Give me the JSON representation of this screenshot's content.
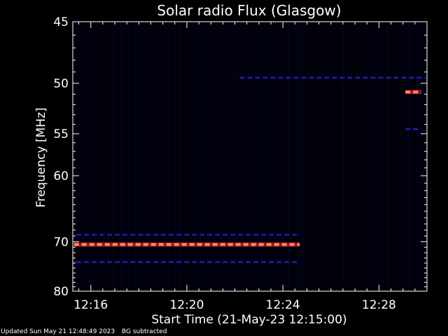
{
  "chart_data": {
    "type": "heatmap",
    "title": "Solar radio Flux (Glasgow)",
    "xlabel": "Start Time (21-May-23 12:15:00)",
    "ylabel": "Frequency [MHz]",
    "x_range_minutes": [
      12.25,
      12.512
    ],
    "x_ticks": [
      "12:16",
      "12:20",
      "12:24",
      "12:28"
    ],
    "x_tick_minutes": [
      16,
      20,
      24,
      28
    ],
    "x_min_minutes": 15.25,
    "x_max_minutes": 30.0,
    "ylim": [
      80,
      45
    ],
    "y_ticks": [
      45,
      50,
      55,
      60,
      70,
      80
    ],
    "y_scale": "reciprocal",
    "colors": {
      "background": "#000008",
      "low": "#1a1aa0",
      "mid": "#c02040",
      "high": "#ff9040",
      "axes": "#ffffff"
    },
    "emission_bands": [
      {
        "freq": 70.5,
        "start_min": 15.3,
        "end_min": 24.7,
        "intensity": "high"
      },
      {
        "freq": 68.8,
        "start_min": 15.4,
        "end_min": 24.7,
        "intensity": "low"
      },
      {
        "freq": 73.8,
        "start_min": 15.4,
        "end_min": 24.7,
        "intensity": "low"
      },
      {
        "freq": 49.5,
        "start_min": 22.2,
        "end_min": 29.95,
        "intensity": "low"
      },
      {
        "freq": 50.8,
        "start_min": 29.1,
        "end_min": 29.75,
        "intensity": "high"
      },
      {
        "freq": 54.5,
        "start_min": 29.1,
        "end_min": 29.75,
        "intensity": "low"
      }
    ],
    "footer": {
      "updated": "Updated Sun May 21 12:48:49 2023",
      "note": "BG subtracted"
    }
  }
}
